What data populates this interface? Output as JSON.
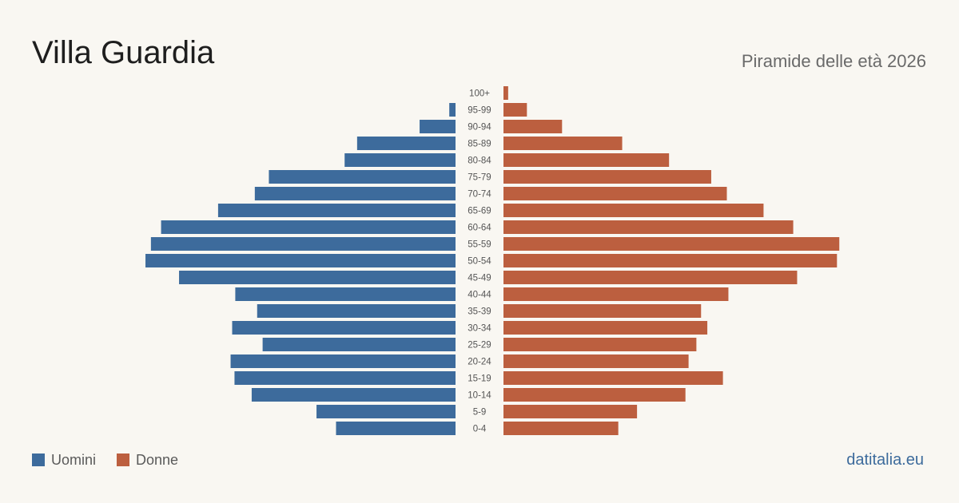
{
  "header": {
    "title": "Villa Guardia",
    "subtitle": "Piramide delle età 2026"
  },
  "legend": {
    "men_label": "Uomini",
    "women_label": "Donne"
  },
  "source": "datitalia.eu",
  "colors": {
    "men": "#3d6b9c",
    "women": "#bc5f3f",
    "background": "#f9f7f2"
  },
  "chart_data": {
    "type": "bar",
    "orientation": "horizontal-pyramid",
    "title": "Piramide delle età 2026",
    "categories": [
      "100+",
      "95-99",
      "90-94",
      "85-89",
      "80-84",
      "75-79",
      "70-74",
      "65-69",
      "60-64",
      "55-59",
      "50-54",
      "45-49",
      "40-44",
      "35-39",
      "30-34",
      "25-29",
      "20-24",
      "15-19",
      "10-14",
      "5-9",
      "0-4"
    ],
    "series": [
      {
        "name": "Uomini",
        "values": [
          0,
          8,
          46,
          126,
          142,
          239,
          257,
          304,
          377,
          390,
          397,
          354,
          282,
          254,
          286,
          247,
          288,
          283,
          261,
          178,
          153
        ]
      },
      {
        "name": "Donne",
        "values": [
          6,
          30,
          75,
          152,
          212,
          266,
          286,
          333,
          371,
          430,
          427,
          376,
          288,
          253,
          261,
          247,
          237,
          281,
          233,
          171,
          147
        ]
      }
    ],
    "xlim": [
      0,
      440
    ],
    "legend_position": "bottom-left",
    "grid": false
  }
}
